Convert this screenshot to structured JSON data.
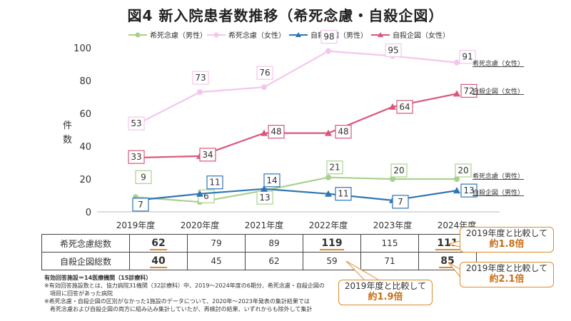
{
  "title": "図4 新入院患者数推移（希死念慮・自殺企図）",
  "y_axis_label": "件数",
  "chart_data": {
    "type": "line",
    "categories": [
      "2019年度",
      "2020年度",
      "2021年度",
      "2022年度",
      "2023年度",
      "2024年度"
    ],
    "ylim": [
      0,
      100
    ],
    "yticks": [
      0,
      20,
      40,
      60,
      80,
      100
    ],
    "grid": false,
    "legend": "top",
    "series": [
      {
        "name": "希死念慮（男性）",
        "color": "#a9d18e",
        "marker": "circle",
        "values": [
          9,
          6,
          13,
          21,
          20,
          20
        ],
        "end_label": "希死念慮（男性）"
      },
      {
        "name": "希死念慮（女性）",
        "color": "#f4c6ec",
        "marker": "circle",
        "values": [
          53,
          73,
          76,
          98,
          95,
          91
        ],
        "end_label": "希死念慮（女性）"
      },
      {
        "name": "自殺企図（男性）",
        "color": "#2e75b6",
        "marker": "triangle",
        "values": [
          7,
          11,
          14,
          11,
          7,
          13
        ],
        "end_label": "自殺企図（男性）"
      },
      {
        "name": "自殺企図（女性）",
        "color": "#d9577a",
        "marker": "triangle",
        "values": [
          33,
          34,
          48,
          48,
          64,
          72
        ],
        "end_label": "自殺企図（女性）"
      }
    ]
  },
  "table": {
    "rows": [
      {
        "label": "希死念慮総数",
        "values": [
          "62",
          "79",
          "89",
          "119",
          "115",
          "111"
        ],
        "highlight": [
          true,
          false,
          false,
          true,
          false,
          true
        ]
      },
      {
        "label": "自殺企図総数",
        "values": [
          "40",
          "45",
          "62",
          "59",
          "71",
          "85"
        ],
        "highlight": [
          true,
          false,
          false,
          false,
          false,
          true
        ]
      }
    ]
  },
  "callouts": [
    {
      "line1": "2019年度と比較して",
      "line2": "約1.8倍"
    },
    {
      "line1": "2019年度と比較して",
      "line2": "約2.1倍"
    },
    {
      "line1": "2019年度と比較して",
      "line2": "約1.9倍"
    }
  ],
  "notes": [
    "有効回答施設＝14医療機関（15診療科）",
    "※有効回答施設数とは、協力病院31機関（32診療科）中、2019～2024年度の6期分、希死念慮・自殺企図の",
    "　項目に回答があった病院",
    "※希死念慮・自殺企図の区別がなかった1施設のデータについて、2020年～2023年発表の集計結果では",
    "　希死念慮および自殺企図の両方に組み込み集計していたが、再検討の結果、いずれからも除外して集計"
  ]
}
